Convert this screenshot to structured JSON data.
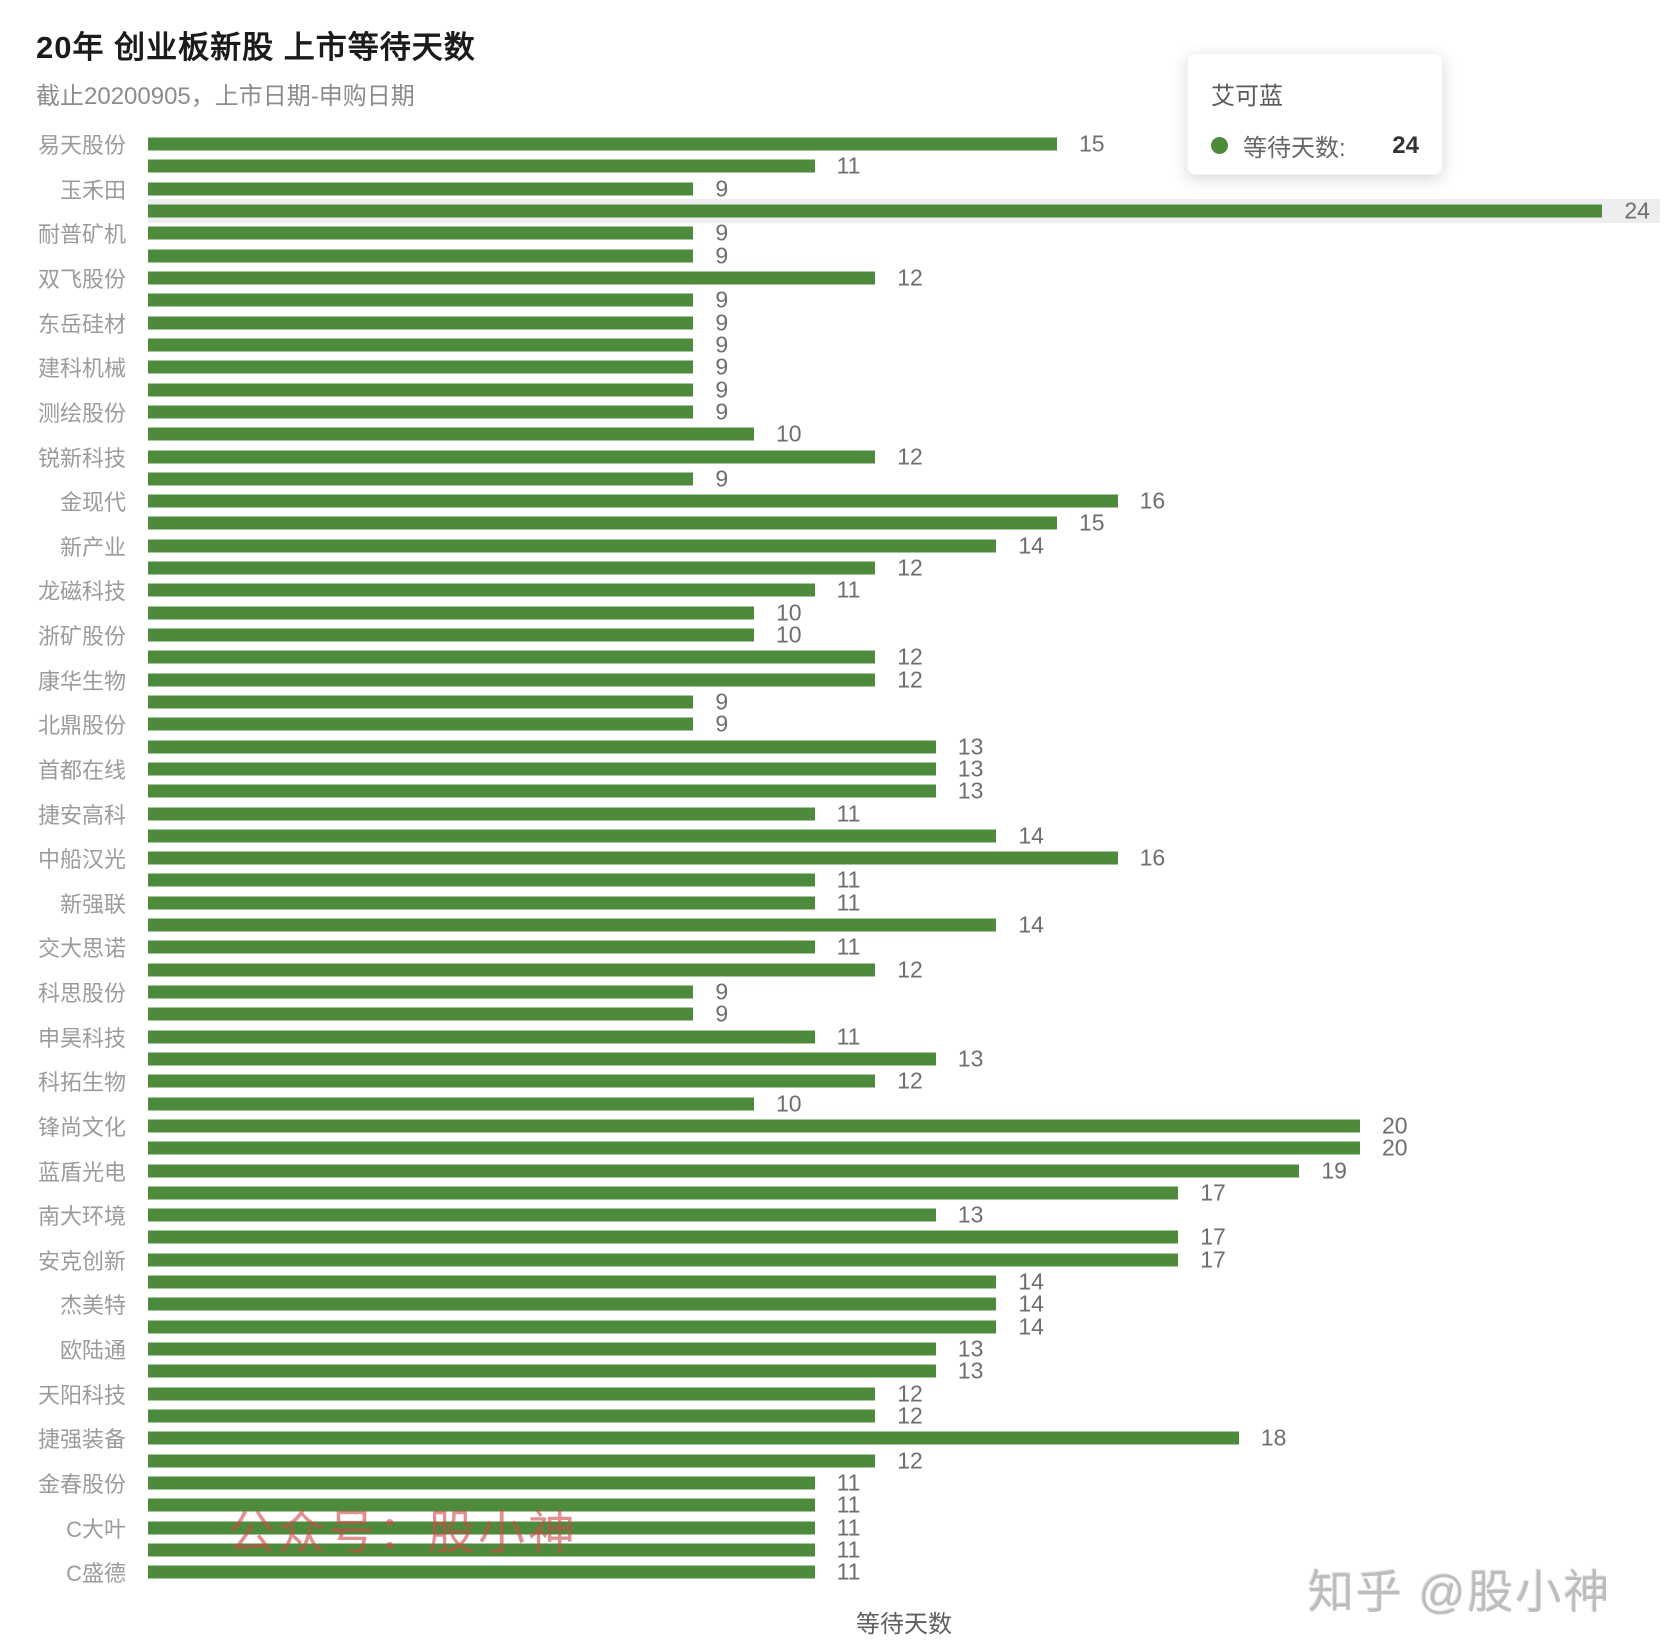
{
  "title": "20年 创业板新股 上市等待天数",
  "subtitle": "截止20200905，上市日期-申购日期",
  "x_axis_name": "等待天数",
  "tooltip": {
    "name": "艾可蓝",
    "series_label": "等待天数:",
    "value": 24
  },
  "watermarks": {
    "wechat": "公众号：股小神",
    "zhihu": "知乎 @股小神"
  },
  "colors": {
    "bar": "#4d8a3c",
    "tooltip_marker": "#4d8a3c",
    "highlight_band": "#ededf0"
  },
  "chart_data": {
    "type": "bar",
    "orientation": "horizontal",
    "title": "20年 创业板新股 上市等待天数",
    "subtitle": "截止20200905，上市日期-申购日期",
    "xlabel": "等待天数",
    "ylabel": "",
    "series_name": "等待天数",
    "xlim": [
      0,
      25
    ],
    "grid": false,
    "legend": "none",
    "value_labels": true,
    "highlight_index": 3,
    "highlight_tooltip_name": "艾可蓝",
    "rows": [
      {
        "label": "易天股份",
        "value": 15
      },
      {
        "label": "",
        "value": 11
      },
      {
        "label": "玉禾田",
        "value": 9
      },
      {
        "label": "",
        "value": 24
      },
      {
        "label": "耐普矿机",
        "value": 9
      },
      {
        "label": "",
        "value": 9
      },
      {
        "label": "双飞股份",
        "value": 12
      },
      {
        "label": "",
        "value": 9
      },
      {
        "label": "东岳硅材",
        "value": 9
      },
      {
        "label": "",
        "value": 9
      },
      {
        "label": "建科机械",
        "value": 9
      },
      {
        "label": "",
        "value": 9
      },
      {
        "label": "测绘股份",
        "value": 9
      },
      {
        "label": "",
        "value": 10
      },
      {
        "label": "锐新科技",
        "value": 12
      },
      {
        "label": "",
        "value": 9
      },
      {
        "label": "金现代",
        "value": 16
      },
      {
        "label": "",
        "value": 15
      },
      {
        "label": "新产业",
        "value": 14
      },
      {
        "label": "",
        "value": 12
      },
      {
        "label": "龙磁科技",
        "value": 11
      },
      {
        "label": "",
        "value": 10
      },
      {
        "label": "浙矿股份",
        "value": 10
      },
      {
        "label": "",
        "value": 12
      },
      {
        "label": "康华生物",
        "value": 12
      },
      {
        "label": "",
        "value": 9
      },
      {
        "label": "北鼎股份",
        "value": 9
      },
      {
        "label": "",
        "value": 13
      },
      {
        "label": "首都在线",
        "value": 13
      },
      {
        "label": "",
        "value": 13
      },
      {
        "label": "捷安高科",
        "value": 11
      },
      {
        "label": "",
        "value": 14
      },
      {
        "label": "中船汉光",
        "value": 16
      },
      {
        "label": "",
        "value": 11
      },
      {
        "label": "新强联",
        "value": 11
      },
      {
        "label": "",
        "value": 14
      },
      {
        "label": "交大思诺",
        "value": 11
      },
      {
        "label": "",
        "value": 12
      },
      {
        "label": "科思股份",
        "value": 9
      },
      {
        "label": "",
        "value": 9
      },
      {
        "label": "申昊科技",
        "value": 11
      },
      {
        "label": "",
        "value": 13
      },
      {
        "label": "科拓生物",
        "value": 12
      },
      {
        "label": "",
        "value": 10
      },
      {
        "label": "锋尚文化",
        "value": 20
      },
      {
        "label": "",
        "value": 20
      },
      {
        "label": "蓝盾光电",
        "value": 19
      },
      {
        "label": "",
        "value": 17
      },
      {
        "label": "南大环境",
        "value": 13
      },
      {
        "label": "",
        "value": 17
      },
      {
        "label": "安克创新",
        "value": 17
      },
      {
        "label": "",
        "value": 14
      },
      {
        "label": "杰美特",
        "value": 14
      },
      {
        "label": "",
        "value": 14
      },
      {
        "label": "欧陆通",
        "value": 13
      },
      {
        "label": "",
        "value": 13
      },
      {
        "label": "天阳科技",
        "value": 12
      },
      {
        "label": "",
        "value": 12
      },
      {
        "label": "捷强装备",
        "value": 18
      },
      {
        "label": "",
        "value": 12
      },
      {
        "label": "金春股份",
        "value": 11
      },
      {
        "label": "",
        "value": 11
      },
      {
        "label": "C大叶",
        "value": 11
      },
      {
        "label": "",
        "value": 11
      },
      {
        "label": "C盛德",
        "value": 11
      }
    ]
  }
}
